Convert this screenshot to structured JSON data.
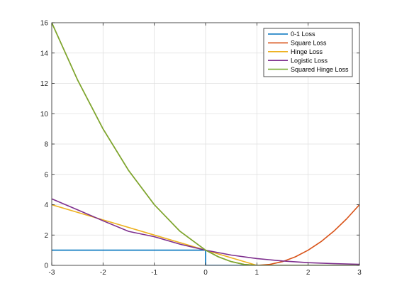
{
  "chart_data": {
    "type": "line",
    "title": "",
    "xlabel": "",
    "ylabel": "",
    "xlim": [
      -3,
      3
    ],
    "ylim": [
      0,
      16
    ],
    "xticks": [
      -3,
      -2,
      -1,
      0,
      1,
      2,
      3
    ],
    "yticks": [
      0,
      2,
      4,
      6,
      8,
      10,
      12,
      14,
      16
    ],
    "grid": true,
    "legend_position": "top-right",
    "series": [
      {
        "name": "0-1 Loss",
        "color": "#0072BD",
        "x": [
          -3,
          0,
          0,
          3
        ],
        "y": [
          1,
          1,
          0,
          0
        ]
      },
      {
        "name": "Square Loss",
        "color": "#D95319",
        "x": [
          -3,
          -2.5,
          -2,
          -1.5,
          -1,
          -0.5,
          0,
          0.25,
          0.5,
          0.75,
          1,
          1.25,
          1.5,
          1.75,
          2,
          2.25,
          2.5,
          2.75,
          3
        ],
        "y": [
          16,
          12.25,
          9,
          6.25,
          4,
          2.25,
          1,
          0.5625,
          0.25,
          0.0625,
          0,
          0.0625,
          0.25,
          0.5625,
          1,
          1.5625,
          2.25,
          3.0625,
          4
        ],
        "visible_range": [
          0,
          3
        ]
      },
      {
        "name": "Hinge Loss",
        "color": "#EDB120",
        "x": [
          -3,
          -2,
          -1,
          0,
          1,
          2,
          3
        ],
        "y": [
          4,
          3,
          2,
          1,
          0,
          0,
          0
        ]
      },
      {
        "name": "Logistic Loss",
        "color": "#7E2F8E",
        "x": [
          -3,
          -2.5,
          -2,
          -1.5,
          -1,
          -0.5,
          0,
          0.5,
          1,
          1.5,
          2,
          2.5,
          3
        ],
        "y": [
          4.39,
          3.67,
          2.94,
          2.24,
          1.89,
          1.4,
          1.0,
          0.68,
          0.45,
          0.29,
          0.18,
          0.11,
          0.07
        ]
      },
      {
        "name": "Squared Hinge Loss",
        "color": "#77AC30",
        "x": [
          -3,
          -2.5,
          -2,
          -1.5,
          -1,
          -0.5,
          0,
          0.25,
          0.5,
          0.75,
          1,
          2,
          3
        ],
        "y": [
          16,
          12.25,
          9,
          6.25,
          4,
          2.25,
          1,
          0.5625,
          0.25,
          0.0625,
          0,
          0,
          0
        ]
      }
    ]
  }
}
